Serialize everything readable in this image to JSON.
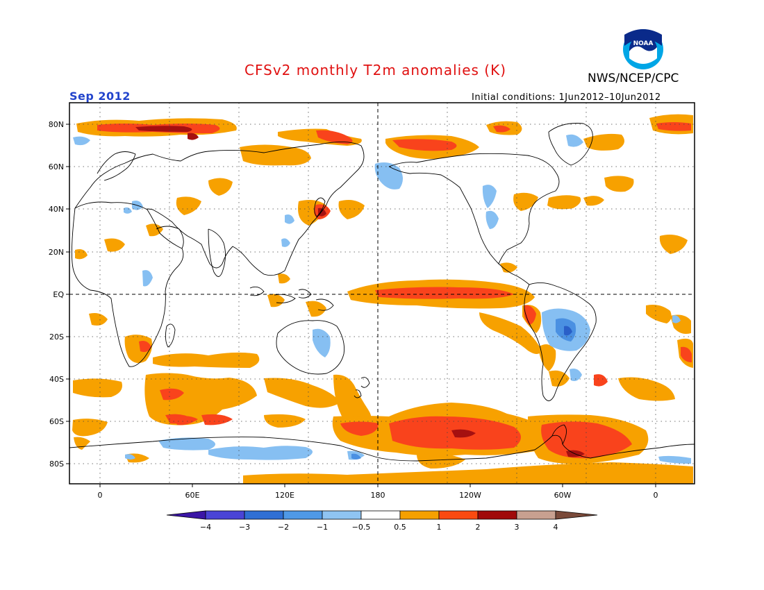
{
  "title": "CFSv2 monthly T2m anomalies (K)",
  "agency": "NWS/NCEP/CPC",
  "logo_text": "NOAA",
  "valid_period": "Sep 2012",
  "initial_conditions": "Initial conditions: 1Jun2012–10Jun2012",
  "map": {
    "lat_labels": [
      "80N",
      "60N",
      "40N",
      "20N",
      "EQ",
      "20S",
      "40S",
      "60S",
      "80S"
    ],
    "lon_labels": [
      "0",
      "60E",
      "120E",
      "180",
      "120W",
      "60W",
      "0"
    ]
  },
  "colorbar": {
    "labels": [
      "−4",
      "−3",
      "−2",
      "−1",
      "−0.5",
      "0.5",
      "1",
      "2",
      "3",
      "4"
    ],
    "colors": [
      "#3b16a6",
      "#4a44d6",
      "#2f6fd4",
      "#4f99e6",
      "#8fc4f2",
      "#ffffff",
      "#f5a000",
      "#fa4a10",
      "#e0250c",
      "#a00a0a",
      "#c8a090",
      "#7a4a3a"
    ]
  },
  "anomaly_colors": {
    "warm_0_5": "#f7a100",
    "warm_1": "#f9431c",
    "warm_2": "#a51010",
    "cold_0_5": "#86bff2",
    "cold_1": "#4a90e2",
    "cold_2": "#2a5fc8"
  }
}
